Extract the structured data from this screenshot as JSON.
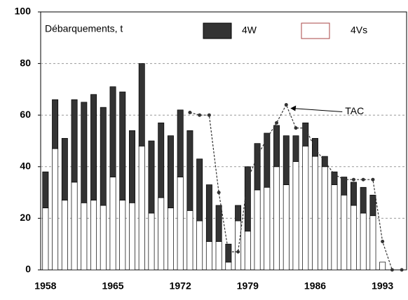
{
  "chart_data": {
    "type": "bar",
    "stacked": true,
    "y_label": "Débarquements, t",
    "categories": [
      "1958",
      null,
      null,
      null,
      null,
      null,
      null,
      "1965",
      null,
      null,
      null,
      null,
      null,
      null,
      "1972",
      null,
      null,
      null,
      null,
      null,
      null,
      "1979",
      null,
      null,
      null,
      null,
      null,
      null,
      "1986",
      null,
      null,
      null,
      null,
      null,
      null,
      "1993",
      null,
      null
    ],
    "series": [
      {
        "name": "4Vs",
        "color": "#ffffff",
        "values": [
          24,
          47,
          27,
          34,
          26,
          27,
          25,
          36,
          27,
          26,
          48,
          22,
          28,
          24,
          36,
          23,
          19,
          11,
          11,
          3,
          19,
          15,
          31,
          32,
          40,
          33,
          42,
          48,
          44,
          40,
          33,
          29,
          25,
          22,
          21,
          3,
          0,
          0
        ]
      },
      {
        "name": "4W",
        "color": "#333333",
        "values": [
          14,
          19,
          24,
          32,
          39,
          41,
          38,
          35,
          42,
          28,
          32,
          28,
          29,
          28,
          26,
          31,
          24,
          22,
          14,
          7,
          6,
          25,
          18,
          21,
          16,
          19,
          10,
          9,
          7,
          4,
          5,
          7,
          9,
          10,
          8,
          0,
          0,
          0
        ]
      },
      {
        "name": "TAC",
        "type": "line",
        "color": "#333333",
        "values": [
          null,
          null,
          null,
          null,
          null,
          null,
          null,
          null,
          null,
          null,
          null,
          null,
          null,
          null,
          null,
          61,
          60,
          60,
          30,
          7,
          7,
          35,
          44,
          51,
          57,
          64,
          55,
          55,
          47,
          42,
          37,
          35,
          35,
          35,
          35,
          11,
          0,
          0
        ]
      }
    ],
    "ylim": [
      0,
      100
    ],
    "yticks": [
      0,
      20,
      40,
      60,
      80,
      100
    ],
    "grid": true
  }
}
